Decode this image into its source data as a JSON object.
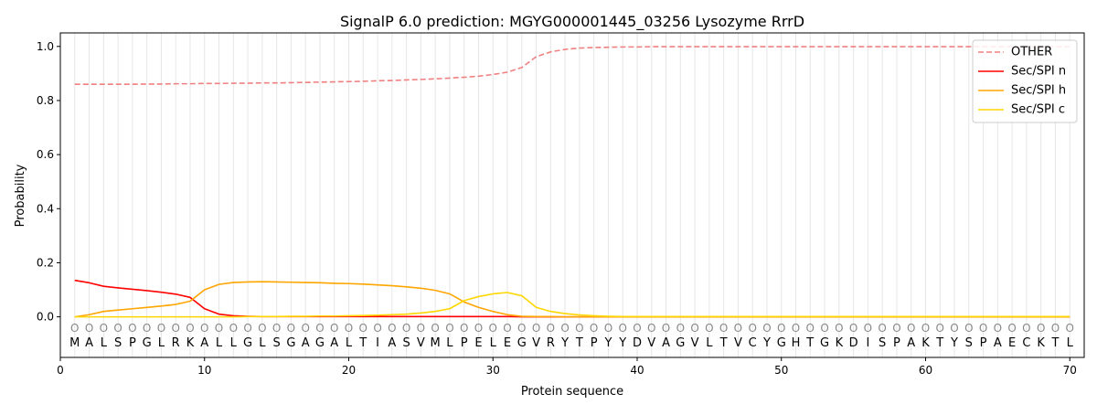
{
  "chart_data": {
    "type": "line",
    "title": "SignalP 6.0 prediction: MGYG000001445_03256 Lysozyme RrrD",
    "xlabel": "Protein sequence",
    "ylabel": "Probability",
    "xlim": [
      0,
      71
    ],
    "ylim": [
      -0.15,
      1.05
    ],
    "xticks": [
      0,
      10,
      20,
      30,
      40,
      50,
      60,
      70
    ],
    "yticks": [
      0.0,
      0.2,
      0.4,
      0.6,
      0.8,
      1.0
    ],
    "x": [
      1,
      2,
      3,
      4,
      5,
      6,
      7,
      8,
      9,
      10,
      11,
      12,
      13,
      14,
      15,
      16,
      17,
      18,
      19,
      20,
      21,
      22,
      23,
      24,
      25,
      26,
      27,
      28,
      29,
      30,
      31,
      32,
      33,
      34,
      35,
      36,
      37,
      38,
      39,
      40,
      41,
      42,
      43,
      44,
      45,
      46,
      47,
      48,
      49,
      50,
      51,
      52,
      53,
      54,
      55,
      56,
      57,
      58,
      59,
      60,
      61,
      62,
      63,
      64,
      65,
      66,
      67,
      68,
      69,
      70
    ],
    "sequence": [
      "M",
      "A",
      "L",
      "S",
      "P",
      "G",
      "L",
      "R",
      "K",
      "A",
      "L",
      "L",
      "G",
      "L",
      "S",
      "G",
      "A",
      "G",
      "A",
      "L",
      "T",
      "I",
      "A",
      "S",
      "V",
      "M",
      "L",
      "P",
      "E",
      "L",
      "E",
      "G",
      "V",
      "R",
      "Y",
      "T",
      "P",
      "Y",
      "Y",
      "D",
      "V",
      "A",
      "G",
      "V",
      "L",
      "T",
      "V",
      "C",
      "Y",
      "G",
      "H",
      "T",
      "G",
      "K",
      "D",
      "I",
      "S",
      "P",
      "A",
      "K",
      "T",
      "Y",
      "S",
      "P",
      "A",
      "E",
      "C",
      "K",
      "T",
      "L"
    ],
    "predicted_label": "O",
    "legend_position": "upper-right",
    "series": [
      {
        "name": "OTHER",
        "color": "#f08080",
        "style": "dashed",
        "values": [
          0.86,
          0.86,
          0.86,
          0.86,
          0.86,
          0.861,
          0.861,
          0.862,
          0.862,
          0.863,
          0.863,
          0.864,
          0.864,
          0.865,
          0.865,
          0.866,
          0.867,
          0.868,
          0.869,
          0.87,
          0.871,
          0.873,
          0.874,
          0.876,
          0.878,
          0.88,
          0.883,
          0.886,
          0.89,
          0.896,
          0.905,
          0.922,
          0.962,
          0.98,
          0.989,
          0.994,
          0.996,
          0.997,
          0.998,
          0.998,
          0.999,
          0.999,
          0.999,
          0.999,
          0.999,
          0.999,
          0.999,
          0.999,
          0.999,
          0.999,
          0.999,
          0.999,
          0.999,
          0.999,
          0.999,
          0.999,
          0.999,
          0.999,
          0.999,
          0.999,
          0.999,
          0.999,
          0.999,
          0.999,
          0.999,
          0.999,
          0.999,
          0.999,
          0.999,
          0.999
        ]
      },
      {
        "name": "Sec/SPI n",
        "color": "#ff0000",
        "style": "solid",
        "values": [
          0.135,
          0.126,
          0.113,
          0.107,
          0.102,
          0.097,
          0.091,
          0.084,
          0.072,
          0.03,
          0.01,
          0.004,
          0.002,
          0.001,
          0.001,
          0.001,
          0.001,
          0.001,
          0.001,
          0.001,
          0.001,
          0.001,
          0.001,
          0.001,
          0.001,
          0.001,
          0.001,
          0.001,
          0.001,
          0.001,
          0.001,
          0.0,
          0.0,
          0.0,
          0.0,
          0.0,
          0.0,
          0.0,
          0.0,
          0.0,
          0.0,
          0.0,
          0.0,
          0.0,
          0.0,
          0.0,
          0.0,
          0.0,
          0.0,
          0.0,
          0.0,
          0.0,
          0.0,
          0.0,
          0.0,
          0.0,
          0.0,
          0.0,
          0.0,
          0.0,
          0.0,
          0.0,
          0.0,
          0.0,
          0.0,
          0.0,
          0.0,
          0.0,
          0.0,
          0.0
        ]
      },
      {
        "name": "Sec/SPI h",
        "color": "#ffa500",
        "style": "solid",
        "values": [
          0.0,
          0.008,
          0.02,
          0.025,
          0.03,
          0.035,
          0.04,
          0.046,
          0.058,
          0.1,
          0.12,
          0.127,
          0.129,
          0.13,
          0.129,
          0.128,
          0.127,
          0.126,
          0.124,
          0.123,
          0.121,
          0.118,
          0.115,
          0.111,
          0.106,
          0.098,
          0.085,
          0.055,
          0.035,
          0.02,
          0.008,
          0.002,
          0.001,
          0.001,
          0.0,
          0.0,
          0.0,
          0.0,
          0.0,
          0.0,
          0.0,
          0.0,
          0.0,
          0.0,
          0.0,
          0.0,
          0.0,
          0.0,
          0.0,
          0.0,
          0.0,
          0.0,
          0.0,
          0.0,
          0.0,
          0.0,
          0.0,
          0.0,
          0.0,
          0.0,
          0.0,
          0.0,
          0.0,
          0.0,
          0.0,
          0.0,
          0.0,
          0.0,
          0.0,
          0.0
        ]
      },
      {
        "name": "Sec/SPI c",
        "color": "#ffd700",
        "style": "solid",
        "values": [
          0.0,
          0.0,
          0.0,
          0.0,
          0.0,
          0.0,
          0.0,
          0.0,
          0.0,
          0.0,
          0.0,
          0.0,
          0.001,
          0.001,
          0.001,
          0.002,
          0.002,
          0.003,
          0.003,
          0.004,
          0.005,
          0.006,
          0.008,
          0.01,
          0.014,
          0.02,
          0.03,
          0.06,
          0.075,
          0.085,
          0.09,
          0.078,
          0.035,
          0.02,
          0.012,
          0.007,
          0.004,
          0.002,
          0.001,
          0.001,
          0.001,
          0.001,
          0.001,
          0.001,
          0.001,
          0.001,
          0.001,
          0.001,
          0.001,
          0.001,
          0.001,
          0.001,
          0.001,
          0.001,
          0.001,
          0.001,
          0.001,
          0.001,
          0.001,
          0.001,
          0.001,
          0.001,
          0.001,
          0.001,
          0.001,
          0.001,
          0.001,
          0.001,
          0.001,
          0.001
        ]
      }
    ]
  }
}
